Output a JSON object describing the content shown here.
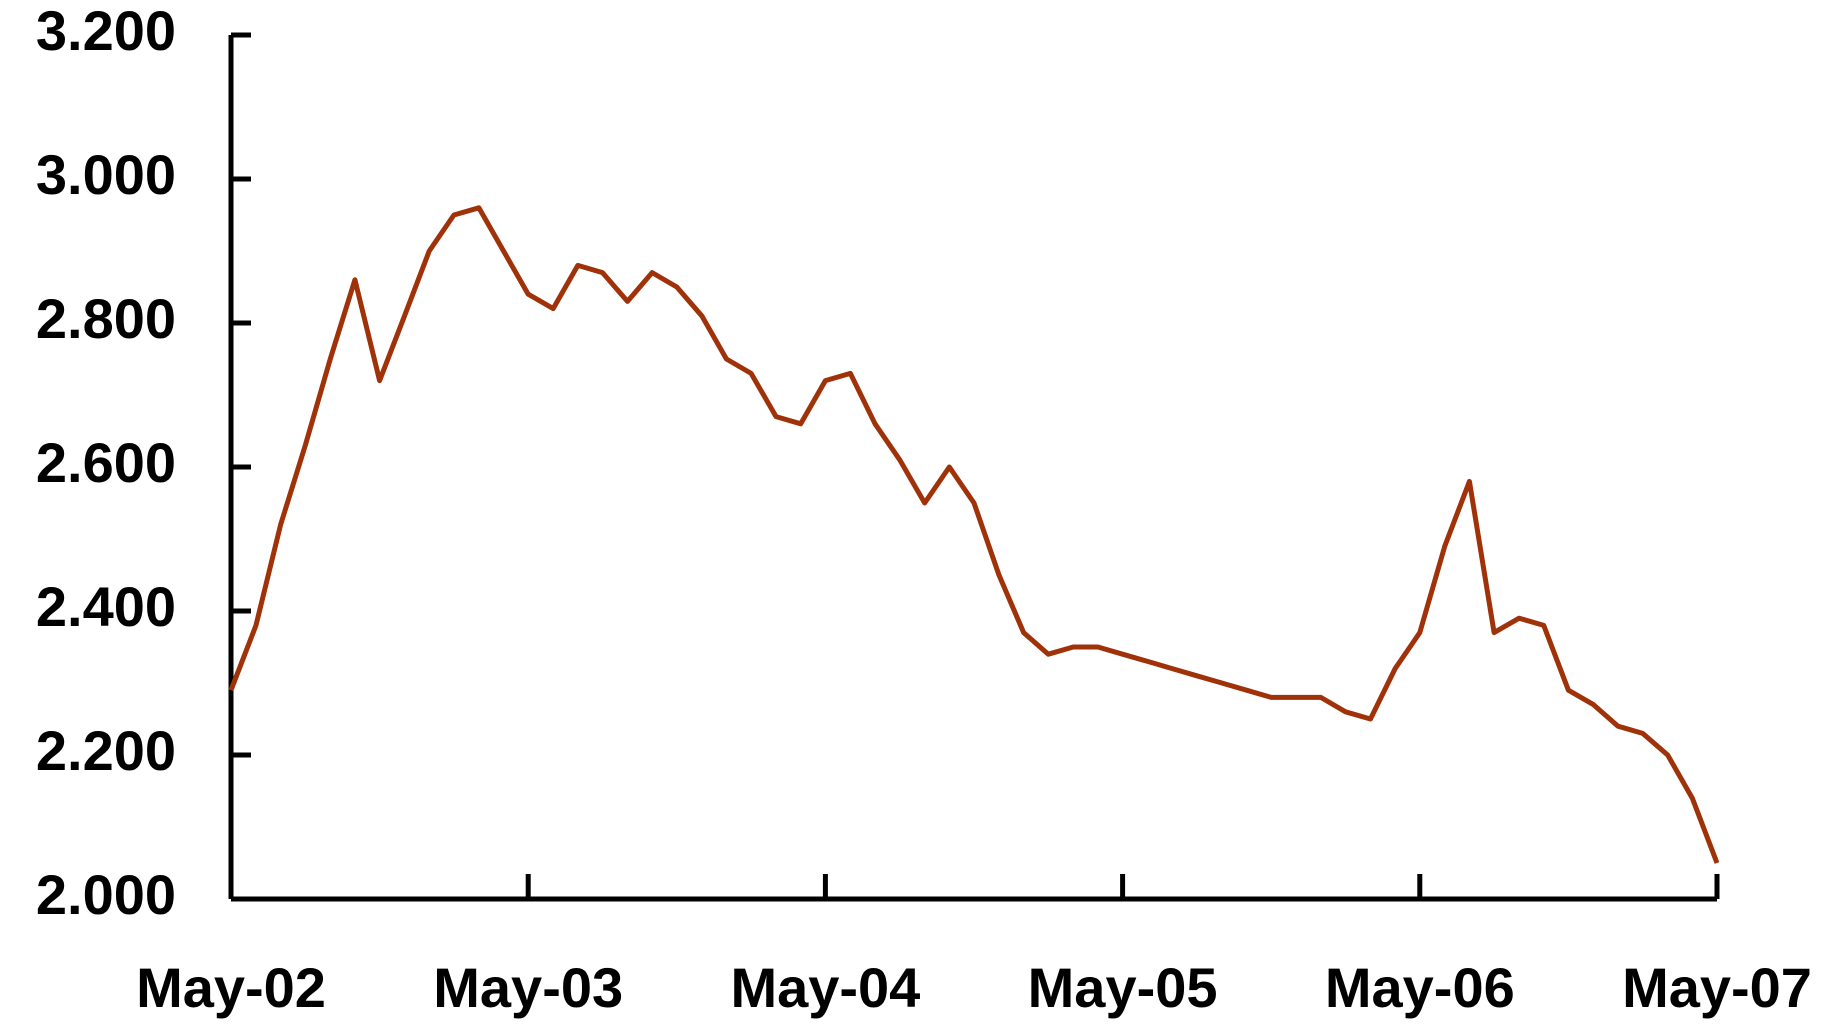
{
  "chart_data": {
    "type": "line",
    "x": [
      2002.333,
      2002.417,
      2002.5,
      2002.583,
      2002.667,
      2002.75,
      2002.833,
      2002.917,
      2003.0,
      2003.083,
      2003.167,
      2003.25,
      2003.333,
      2003.417,
      2003.5,
      2003.583,
      2003.667,
      2003.75,
      2003.833,
      2003.917,
      2004.0,
      2004.083,
      2004.167,
      2004.25,
      2004.333,
      2004.417,
      2004.5,
      2004.583,
      2004.667,
      2004.75,
      2004.833,
      2004.917,
      2005.0,
      2005.083,
      2005.167,
      2005.25,
      2005.333,
      2005.417,
      2005.5,
      2005.583,
      2005.667,
      2005.75,
      2005.833,
      2005.917,
      2006.0,
      2006.083,
      2006.167,
      2006.25,
      2006.333,
      2006.417,
      2006.5,
      2006.583,
      2006.667,
      2006.75,
      2006.833,
      2006.917,
      2007.0,
      2007.083,
      2007.167,
      2007.25,
      2007.333
    ],
    "series": [
      {
        "color": "#a0320a",
        "values": [
          2.29,
          2.38,
          2.52,
          2.63,
          2.75,
          2.86,
          2.72,
          2.81,
          2.9,
          2.95,
          2.96,
          2.9,
          2.84,
          2.82,
          2.88,
          2.87,
          2.83,
          2.87,
          2.85,
          2.81,
          2.75,
          2.73,
          2.67,
          2.66,
          2.72,
          2.73,
          2.66,
          2.61,
          2.55,
          2.6,
          2.55,
          2.45,
          2.37,
          2.34,
          2.35,
          2.35,
          2.34,
          2.33,
          2.32,
          2.31,
          2.3,
          2.29,
          2.28,
          2.28,
          2.28,
          2.26,
          2.25,
          2.32,
          2.37,
          2.49,
          2.58,
          2.37,
          2.39,
          2.38,
          2.29,
          2.27,
          2.24,
          2.23,
          2.2,
          2.14,
          2.05
        ]
      }
    ],
    "xlim": [
      2002.333,
      2007.333
    ],
    "xticks": [
      {
        "value": 2002.333,
        "label": "May-02"
      },
      {
        "value": 2003.333,
        "label": "May-03"
      },
      {
        "value": 2004.333,
        "label": "May-04"
      },
      {
        "value": 2005.333,
        "label": "May-05"
      },
      {
        "value": 2006.333,
        "label": "May-06"
      },
      {
        "value": 2007.333,
        "label": "May-07"
      }
    ],
    "ylim": [
      2.0,
      3.2
    ],
    "yticks": [
      {
        "value": 2.0,
        "label": "2.000"
      },
      {
        "value": 2.2,
        "label": "2.200"
      },
      {
        "value": 2.4,
        "label": "2.400"
      },
      {
        "value": 2.6,
        "label": "2.600"
      },
      {
        "value": 2.8,
        "label": "2.800"
      },
      {
        "value": 3.0,
        "label": "3.000"
      },
      {
        "value": 3.2,
        "label": "3.200"
      }
    ]
  }
}
